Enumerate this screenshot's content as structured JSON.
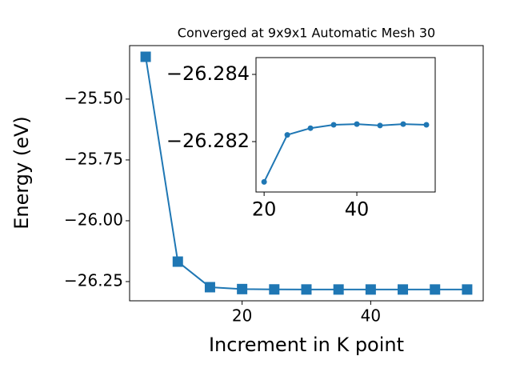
{
  "chart_data": [
    {
      "type": "line",
      "title": "Converged at 9x9x1 Automatic Mesh 30",
      "x_label": "Increment in K point",
      "y_label": "Energy (eV)",
      "x": [
        5,
        10,
        15,
        20,
        25,
        30,
        35,
        40,
        45,
        50,
        55
      ],
      "series": [
        {
          "color": "#1f77b4",
          "marker": "square",
          "values": [
            -25.326,
            -26.168,
            -26.273,
            -26.2808,
            -26.2822,
            -26.2824,
            -26.2825,
            -26.2825,
            -26.2825,
            -26.2825,
            -26.2825
          ]
        }
      ],
      "xlim": [
        2.5,
        57.5
      ],
      "xticks": [
        20,
        40
      ],
      "ylim": [
        -26.329,
        -25.28
      ],
      "yticks": [
        {
          "value": -25.5,
          "label": "−25.50"
        },
        {
          "value": -25.75,
          "label": "−25.75"
        },
        {
          "value": -26.0,
          "label": "−26.00"
        },
        {
          "value": -26.25,
          "label": "−26.25"
        }
      ]
    },
    {
      "type": "line",
      "x": [
        20,
        25,
        30,
        35,
        40,
        45,
        50,
        55
      ],
      "series": [
        {
          "color": "#1f77b4",
          "marker": "circle",
          "values": [
            -26.2808,
            -26.2822,
            -26.2824,
            -26.2825,
            -26.28252,
            -26.28248,
            -26.28252,
            -26.2825
          ]
        }
      ],
      "xlim": [
        18.25,
        56.9
      ],
      "xticks": [
        20,
        40
      ],
      "ylim": [
        -26.2805,
        -26.2845
      ],
      "yticks": [
        {
          "value": -26.284,
          "label": "−26.284"
        },
        {
          "value": -26.282,
          "label": "−26.282"
        }
      ]
    }
  ]
}
